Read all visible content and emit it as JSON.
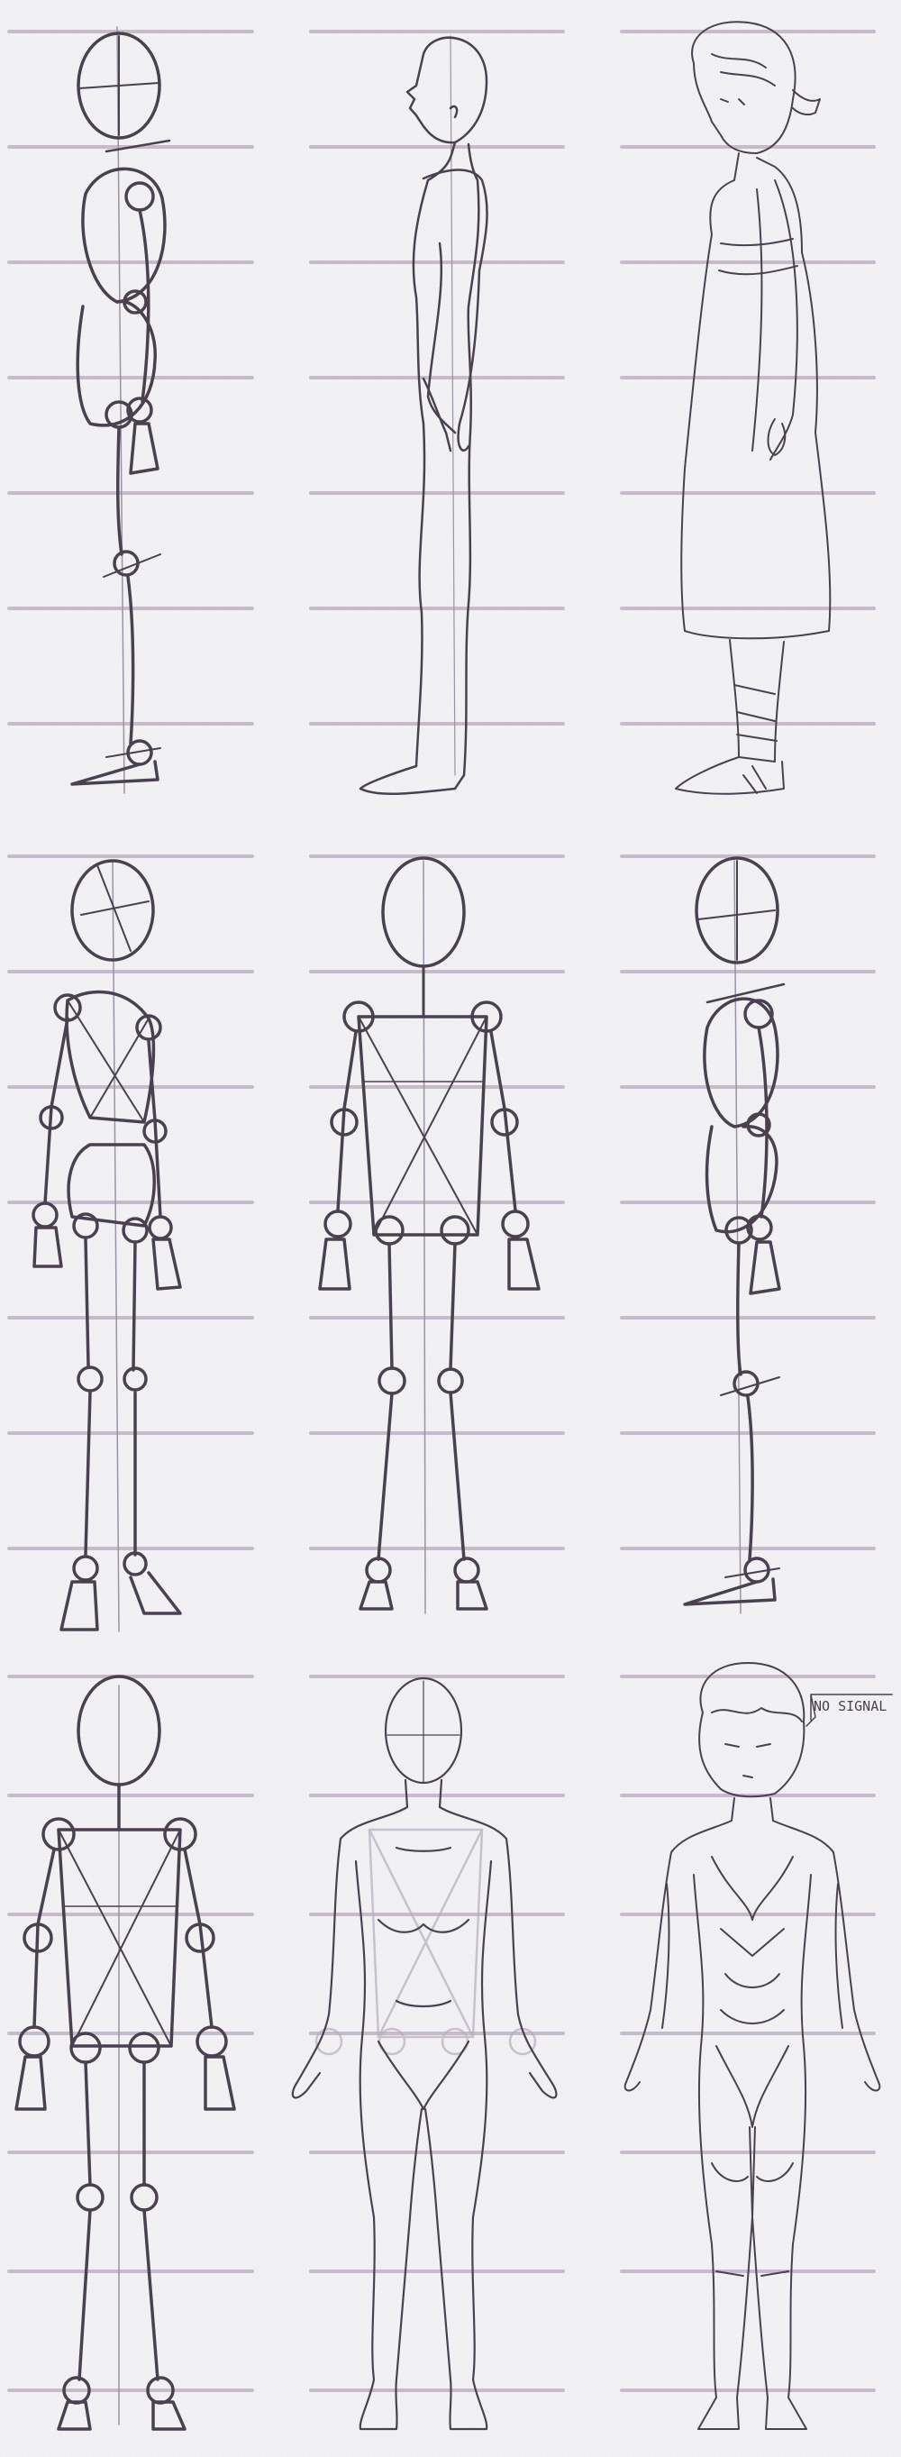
{
  "sheet": {
    "background": "#f1f1f3",
    "guide_line_color": "#b8a9bd",
    "ink_color": "#4a4150",
    "light_ink_color": "#8f849a",
    "center_line_color": "#9a92a6"
  },
  "rows": [
    {
      "id": "row-side-view",
      "panels": [
        {
          "id": "side-mannequin",
          "stage": "proportion-mannequin",
          "view": "side"
        },
        {
          "id": "side-anatomy",
          "stage": "anatomy-outline",
          "view": "side"
        },
        {
          "id": "side-character",
          "stage": "clothed-character",
          "view": "side"
        }
      ]
    },
    {
      "id": "row-mannequins",
      "panels": [
        {
          "id": "three-quarter-mannequin",
          "stage": "proportion-mannequin",
          "view": "three-quarter"
        },
        {
          "id": "front-mannequin",
          "stage": "proportion-mannequin",
          "view": "front"
        },
        {
          "id": "side-mannequin-2",
          "stage": "proportion-mannequin",
          "view": "side"
        }
      ]
    },
    {
      "id": "row-front-view",
      "panels": [
        {
          "id": "front-mannequin-2",
          "stage": "proportion-mannequin",
          "view": "front"
        },
        {
          "id": "front-anatomy",
          "stage": "anatomy-outline",
          "view": "front"
        },
        {
          "id": "front-character",
          "stage": "clothed-character",
          "view": "front"
        }
      ]
    }
  ],
  "note": {
    "text": "NO SIGNAL"
  }
}
